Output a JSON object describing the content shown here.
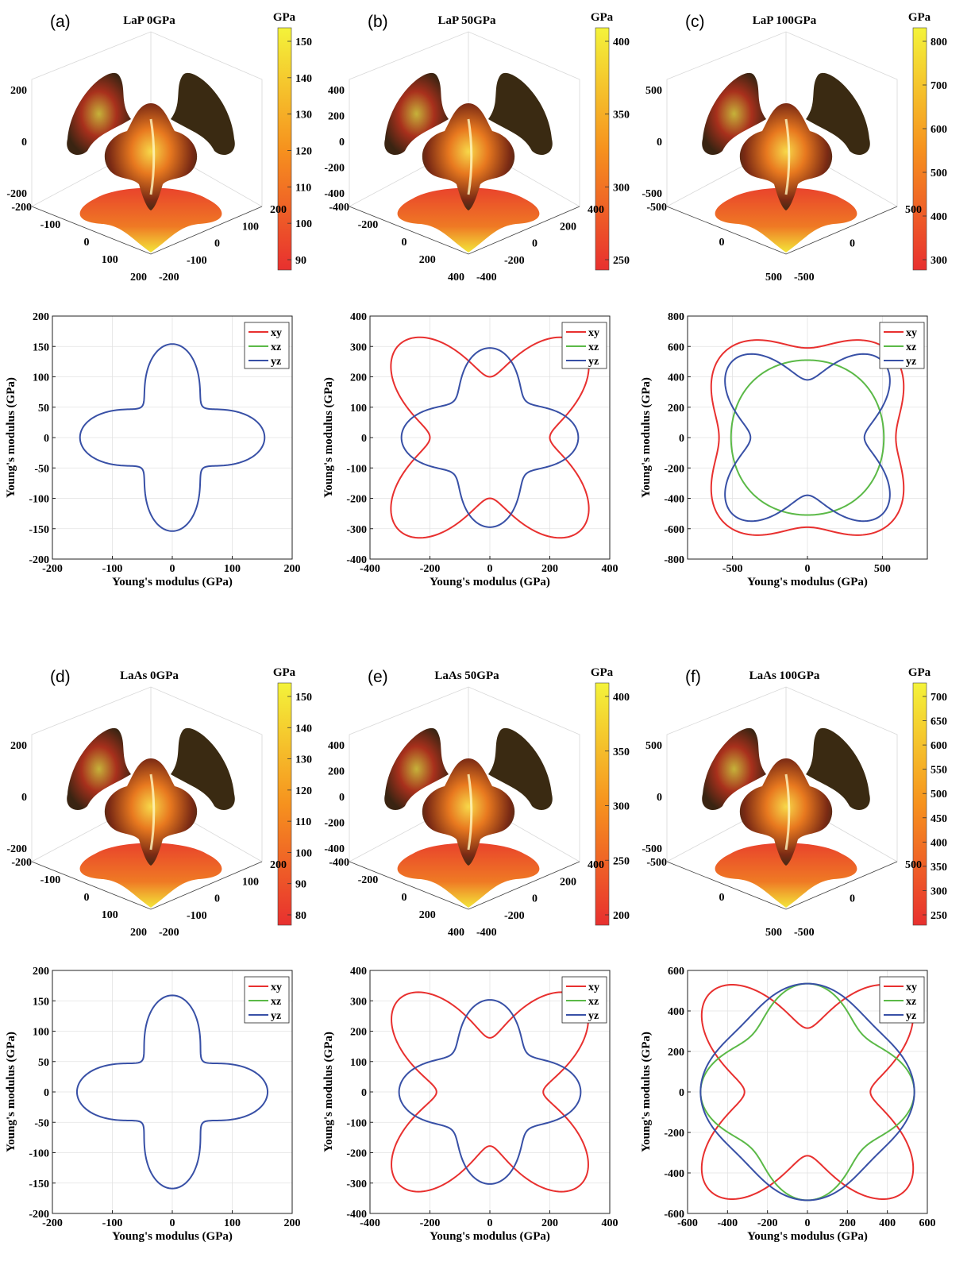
{
  "colors": {
    "xy": "#e8302f",
    "xz": "#5bb947",
    "yz": "#3850a6",
    "cbar_low": "#e8302f",
    "cbar_mid": "#f6921e",
    "cbar_high": "#f4f33a"
  },
  "panels3d": [
    {
      "label": "(a)",
      "title": "LaP 0GPa",
      "cbar_unit": "GPa",
      "cbar_ticks": [
        "150",
        "140",
        "130",
        "120",
        "110",
        "100",
        "90"
      ],
      "z_ticks": [
        "200",
        "0",
        "-200"
      ],
      "x_ticks": [
        "-200",
        "-100",
        "0",
        "100",
        "200"
      ],
      "y_ticks": [
        "200",
        "100",
        "0",
        "-100",
        "-200"
      ]
    },
    {
      "label": "(b)",
      "title": "LaP 50GPa",
      "cbar_unit": "GPa",
      "cbar_ticks": [
        "400",
        "350",
        "300",
        "250"
      ],
      "z_ticks": [
        "400",
        "200",
        "0",
        "-200",
        "-400"
      ],
      "x_ticks": [
        "-400",
        "-200",
        "0",
        "200",
        "400"
      ],
      "y_ticks": [
        "400",
        "200",
        "0",
        "-200",
        "-400"
      ]
    },
    {
      "label": "(c)",
      "title": "LaP 100GPa",
      "cbar_unit": "GPa",
      "cbar_ticks": [
        "800",
        "700",
        "600",
        "500",
        "400",
        "300"
      ],
      "z_ticks": [
        "500",
        "0",
        "-500"
      ],
      "x_ticks": [
        "-500",
        "0",
        "500"
      ],
      "y_ticks": [
        "500",
        "0",
        "-500"
      ]
    },
    {
      "label": "(d)",
      "title": "LaAs 0GPa",
      "cbar_unit": "GPa",
      "cbar_ticks": [
        "150",
        "140",
        "130",
        "120",
        "110",
        "100",
        "90",
        "80"
      ],
      "z_ticks": [
        "200",
        "0",
        "-200"
      ],
      "x_ticks": [
        "-200",
        "-100",
        "0",
        "100",
        "200"
      ],
      "y_ticks": [
        "200",
        "100",
        "0",
        "-100",
        "-200"
      ]
    },
    {
      "label": "(e)",
      "title": "LaAs 50GPa",
      "cbar_unit": "GPa",
      "cbar_ticks": [
        "400",
        "350",
        "300",
        "250",
        "200"
      ],
      "z_ticks": [
        "400",
        "200",
        "0",
        "-200",
        "-400"
      ],
      "x_ticks": [
        "-400",
        "-200",
        "0",
        "200",
        "400"
      ],
      "y_ticks": [
        "400",
        "200",
        "0",
        "-200",
        "-400"
      ]
    },
    {
      "label": "(f)",
      "title": "LaAs 100GPa",
      "cbar_unit": "GPa",
      "cbar_ticks": [
        "700",
        "650",
        "600",
        "550",
        "500",
        "450",
        "400",
        "350",
        "300",
        "250"
      ],
      "z_ticks": [
        "500",
        "0",
        "-500"
      ],
      "x_ticks": [
        "-500",
        "0",
        "500"
      ],
      "y_ticks": [
        "500",
        "0",
        "-500"
      ]
    }
  ],
  "chart_data": [
    {
      "type": "line",
      "polar_projection": true,
      "xlabel": "Young's modulus (GPa)",
      "ylabel": "Young's modulus (GPa)",
      "xlim": [
        -200,
        200
      ],
      "ylim": [
        -200,
        200
      ],
      "xticks": [
        -200,
        -100,
        0,
        100,
        200
      ],
      "yticks": [
        -200,
        -150,
        -100,
        -50,
        0,
        50,
        100,
        150,
        200
      ],
      "grid": true,
      "legend": "top-right",
      "series": [
        {
          "name": "xy",
          "visible": false,
          "r_axis": 154,
          "r_diag": 72
        },
        {
          "name": "xz",
          "visible": false,
          "r_axis": 154,
          "r_diag": 72
        },
        {
          "name": "yz",
          "visible": true,
          "r_axis": 154,
          "r_diag": 72
        }
      ]
    },
    {
      "type": "line",
      "polar_projection": true,
      "xlabel": "Young's modulus (GPa)",
      "ylabel": "Young's modulus (GPa)",
      "xlim": [
        -400,
        400
      ],
      "ylim": [
        -400,
        400
      ],
      "xticks": [
        -400,
        -200,
        0,
        200,
        400
      ],
      "yticks": [
        -400,
        -300,
        -200,
        -100,
        0,
        100,
        200,
        300,
        400
      ],
      "grid": true,
      "legend": "top-right",
      "series": [
        {
          "name": "xy",
          "visible": true,
          "r_axis": 200,
          "r_diag": 430
        },
        {
          "name": "xz",
          "visible": false,
          "r_axis": 295,
          "r_diag": 170
        },
        {
          "name": "yz",
          "visible": true,
          "r_axis": 295,
          "r_diag": 170
        }
      ]
    },
    {
      "type": "line",
      "polar_projection": true,
      "xlabel": "Young's modulus (GPa)",
      "ylabel": "Young's modulus (GPa)",
      "xlim": [
        -800,
        800
      ],
      "ylim": [
        -800,
        800
      ],
      "xticks": [
        -500,
        0,
        500
      ],
      "yticks": [
        -800,
        -600,
        -400,
        -200,
        0,
        200,
        400,
        600,
        800
      ],
      "grid": true,
      "legend": "top-right",
      "series": [
        {
          "name": "xy",
          "visible": true,
          "r_axis": 590,
          "r_diag": 790
        },
        {
          "name": "xz",
          "visible": true,
          "r_axis": 510,
          "r_diag": 520
        },
        {
          "name": "yz",
          "visible": true,
          "r_axis": 380,
          "r_diag": 710
        }
      ]
    },
    {
      "type": "line",
      "polar_projection": true,
      "xlabel": "Young's modulus (GPa)",
      "ylabel": "Young's modulus (GPa)",
      "xlim": [
        -200,
        200
      ],
      "ylim": [
        -200,
        200
      ],
      "xticks": [
        -200,
        -100,
        0,
        100,
        200
      ],
      "yticks": [
        -200,
        -150,
        -100,
        -50,
        0,
        50,
        100,
        150,
        200
      ],
      "grid": true,
      "legend": "top-right",
      "series": [
        {
          "name": "xy",
          "visible": false,
          "r_axis": 159,
          "r_diag": 72
        },
        {
          "name": "xz",
          "visible": false,
          "r_axis": 159,
          "r_diag": 72
        },
        {
          "name": "yz",
          "visible": true,
          "r_axis": 159,
          "r_diag": 72
        }
      ]
    },
    {
      "type": "line",
      "polar_projection": true,
      "xlabel": "Young's modulus (GPa)",
      "ylabel": "Young's modulus (GPa)",
      "xlim": [
        -400,
        400
      ],
      "ylim": [
        -400,
        400
      ],
      "xticks": [
        -400,
        -200,
        0,
        200,
        400
      ],
      "yticks": [
        -400,
        -300,
        -200,
        -100,
        0,
        100,
        200,
        300,
        400
      ],
      "grid": true,
      "legend": "top-right",
      "series": [
        {
          "name": "xy",
          "visible": true,
          "r_axis": 178,
          "r_diag": 430
        },
        {
          "name": "xz",
          "visible": false,
          "r_axis": 303,
          "r_diag": 178
        },
        {
          "name": "yz",
          "visible": true,
          "r_axis": 303,
          "r_diag": 178
        }
      ]
    },
    {
      "type": "line",
      "polar_projection": true,
      "xlabel": "Young's modulus (GPa)",
      "ylabel": "Young's modulus (GPa)",
      "xlim": [
        -600,
        600
      ],
      "ylim": [
        -600,
        600
      ],
      "xticks": [
        -600,
        -400,
        -200,
        0,
        200,
        400,
        600
      ],
      "yticks": [
        -600,
        -400,
        -200,
        0,
        200,
        400,
        600
      ],
      "grid": true,
      "legend": "top-right",
      "series": [
        {
          "name": "xy",
          "visible": true,
          "r_axis": 315,
          "r_diag": 690
        },
        {
          "name": "xz",
          "visible": true,
          "r_axis": 535,
          "r_diag": 395
        },
        {
          "name": "yz",
          "visible": true,
          "r_axis": 535,
          "r_diag": 465
        }
      ]
    }
  ]
}
